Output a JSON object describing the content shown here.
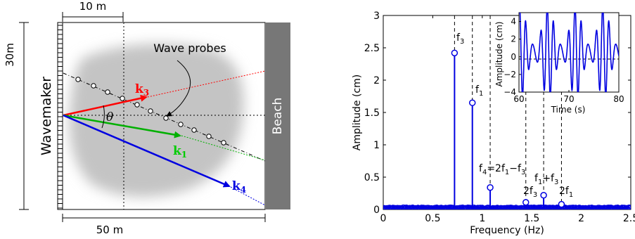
{
  "schematic": {
    "labels": {
      "width_top": "10 m",
      "width_bottom": "50 m",
      "height": "30m",
      "wavemaker": "Wavemaker",
      "beach": "Beach",
      "probes": "Wave probes",
      "theta": "θ",
      "k_bold": "k",
      "k3_sub": "3",
      "k1_sub": "1",
      "k4_sub": "4"
    },
    "colors": {
      "k3": "#ff0000",
      "k1": "#00b000",
      "k4": "#0000e0",
      "beach": "#777777"
    }
  },
  "chart_data": [
    {
      "type": "line",
      "xlabel": "Frequency (Hz)",
      "ylabel": "Amplitude (cm)",
      "xlim": [
        0,
        2.5
      ],
      "ylim": [
        0,
        3
      ],
      "xticks": [
        "0",
        "0.5",
        "1",
        "1.5",
        "2",
        "2.5"
      ],
      "yticks": [
        "0",
        "0.5",
        "1",
        "1.5",
        "2",
        "2.5",
        "3"
      ],
      "peaks": [
        {
          "label": "f3",
          "x": 0.72,
          "y": 2.42
        },
        {
          "label": "f1",
          "x": 0.9,
          "y": 1.65
        },
        {
          "label": "f4=2f1−f3",
          "x": 1.08,
          "y": 0.34
        },
        {
          "label": "2f3",
          "x": 1.44,
          "y": 0.11
        },
        {
          "label": "f1+f3",
          "x": 1.62,
          "y": 0.22
        },
        {
          "label": "2f1",
          "x": 1.8,
          "y": 0.08
        }
      ],
      "peak_labels": {
        "f3": {
          "main": "f",
          "sub": "3"
        },
        "f1": {
          "main": "f",
          "sub": "1"
        },
        "f4": {
          "a": "f",
          "a_sub": "4",
          "b": "=2f",
          "b_sub": "1",
          "c": "−f",
          "c_sub": "3"
        },
        "f1f3": {
          "a": "f",
          "a_sub": "1",
          "b": "+f",
          "b_sub": "3"
        },
        "two_f3": {
          "a": "2f",
          "a_sub": "3"
        },
        "two_f1": {
          "a": "2f",
          "a_sub": "1"
        }
      },
      "color": "#0000e0"
    },
    {
      "type": "line",
      "xlabel": "Time (s)",
      "ylabel": "Amplitude (cm)",
      "xlim": [
        60,
        80
      ],
      "ylim": [
        -4,
        5
      ],
      "xticks": [
        "60",
        "70",
        "80"
      ],
      "yticks": [
        "−4",
        "−2",
        "0",
        "2",
        "4"
      ],
      "color": "#0000e0"
    }
  ]
}
